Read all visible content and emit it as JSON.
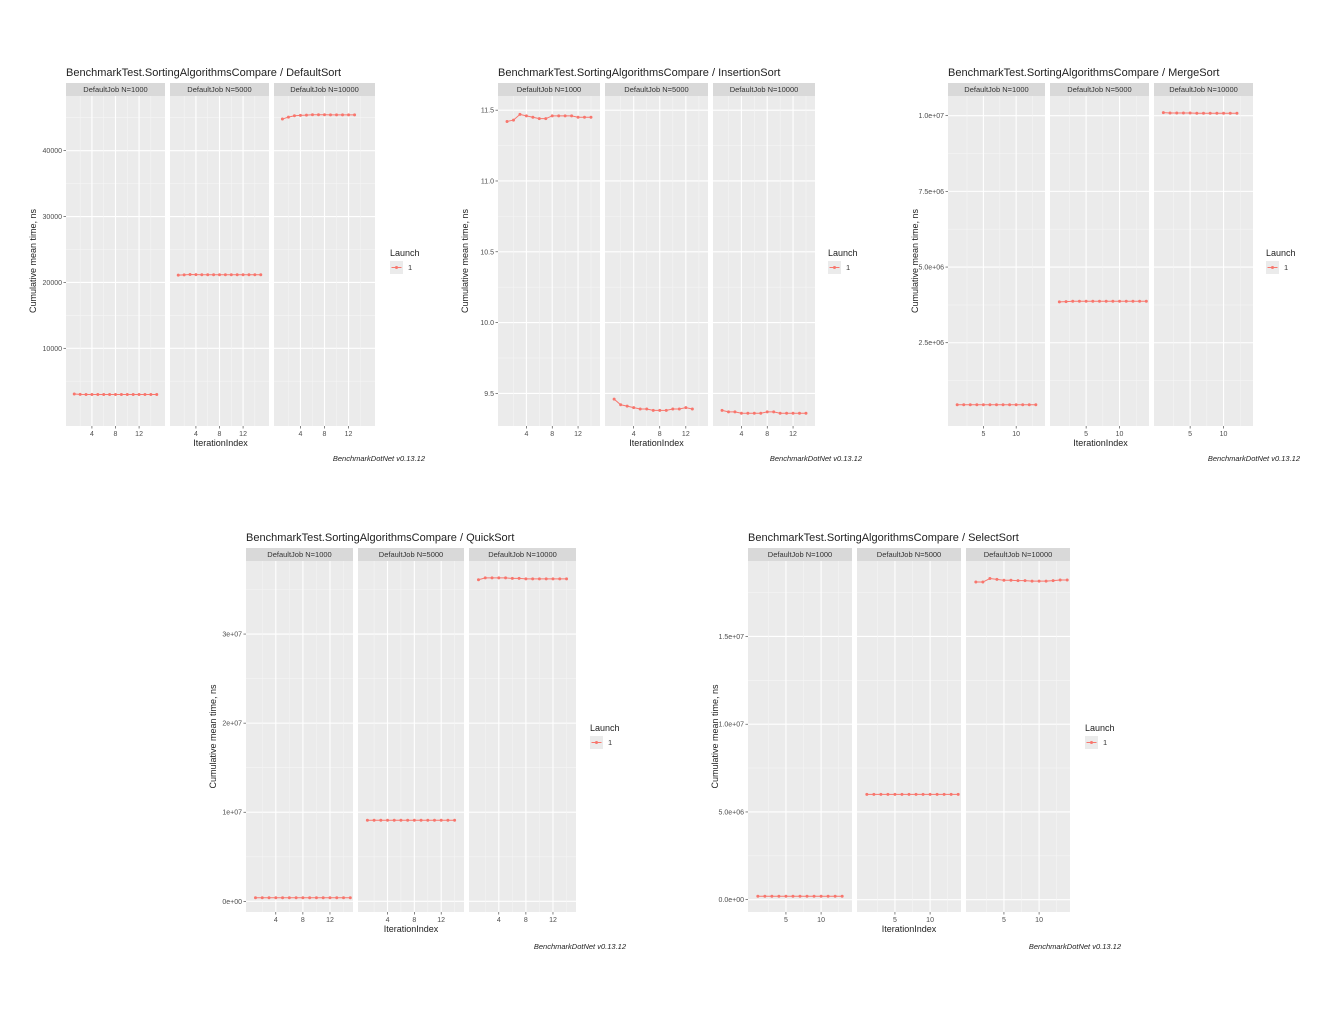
{
  "chart_data": [
    {
      "type": "line",
      "title": "BenchmarkTest.SortingAlgorithmsCompare / DefaultSort",
      "ylabel": "Cumulative mean time, ns",
      "xlabel": "IterationIndex",
      "legend": {
        "title": "Launch",
        "entries": [
          "1"
        ],
        "position": "right"
      },
      "caption": "BenchmarkDotNet v0.13.12",
      "ylim": [
        -1800,
        48300
      ],
      "yticks": [
        {
          "v": 10000,
          "label": "10000"
        },
        {
          "v": 20000,
          "label": "20000"
        },
        {
          "v": 30000,
          "label": "30000"
        },
        {
          "v": 40000,
          "label": "40000"
        }
      ],
      "xlim": [
        -0.4,
        16.4
      ],
      "xticks": [
        {
          "v": 4,
          "label": "4"
        },
        {
          "v": 8,
          "label": "8"
        },
        {
          "v": 12,
          "label": "12"
        }
      ],
      "series_color": "#F8766D",
      "panels": [
        {
          "label": "DefaultJob N=1000",
          "x": [
            1,
            2,
            3,
            4,
            5,
            6,
            7,
            8,
            9,
            10,
            11,
            12,
            13,
            14,
            15
          ],
          "y": [
            3050,
            3000,
            2990,
            2990,
            2990,
            2990,
            2990,
            2990,
            2990,
            2990,
            2990,
            2990,
            2990,
            2990,
            2990
          ]
        },
        {
          "label": "DefaultJob N=5000",
          "x": [
            1,
            2,
            3,
            4,
            5,
            6,
            7,
            8,
            9,
            10,
            11,
            12,
            13,
            14,
            15
          ],
          "y": [
            21100,
            21150,
            21200,
            21180,
            21170,
            21160,
            21160,
            21160,
            21160,
            21160,
            21160,
            21160,
            21160,
            21160,
            21160
          ]
        },
        {
          "label": "DefaultJob N=10000",
          "x": [
            1,
            2,
            3,
            4,
            5,
            6,
            7,
            8,
            9,
            10,
            11,
            12,
            13
          ],
          "y": [
            44800,
            45100,
            45300,
            45350,
            45400,
            45450,
            45450,
            45450,
            45440,
            45440,
            45440,
            45440,
            45440
          ]
        }
      ]
    },
    {
      "type": "line",
      "title": "BenchmarkTest.SortingAlgorithmsCompare / InsertionSort",
      "ylabel": "Cumulative mean time, ns",
      "xlabel": "IterationIndex",
      "legend": {
        "title": "Launch",
        "entries": [
          "1"
        ],
        "position": "right"
      },
      "caption": "BenchmarkDotNet v0.13.12",
      "ylim": [
        9.27,
        11.6
      ],
      "yticks": [
        {
          "v": 9.5,
          "label": "9.5"
        },
        {
          "v": 10.0,
          "label": "10.0"
        },
        {
          "v": 10.5,
          "label": "10.5"
        },
        {
          "v": 11.0,
          "label": "11.0"
        },
        {
          "v": 11.5,
          "label": "11.5"
        }
      ],
      "xlim": [
        -0.4,
        15.4
      ],
      "xticks": [
        {
          "v": 4,
          "label": "4"
        },
        {
          "v": 8,
          "label": "8"
        },
        {
          "v": 12,
          "label": "12"
        }
      ],
      "series_color": "#F8766D",
      "panels": [
        {
          "label": "DefaultJob N=1000",
          "x": [
            1,
            2,
            3,
            4,
            5,
            6,
            7,
            8,
            9,
            10,
            11,
            12,
            13,
            14
          ],
          "y": [
            11.42,
            11.43,
            11.47,
            11.46,
            11.45,
            11.44,
            11.44,
            11.46,
            11.46,
            11.46,
            11.46,
            11.45,
            11.45,
            11.45
          ]
        },
        {
          "label": "DefaultJob N=5000",
          "x": [
            1,
            2,
            3,
            4,
            5,
            6,
            7,
            8,
            9,
            10,
            11,
            12,
            13
          ],
          "y": [
            9.46,
            9.42,
            9.41,
            9.4,
            9.39,
            9.39,
            9.38,
            9.38,
            9.38,
            9.39,
            9.39,
            9.4,
            9.39
          ]
        },
        {
          "label": "DefaultJob N=10000",
          "x": [
            1,
            2,
            3,
            4,
            5,
            6,
            7,
            8,
            9,
            10,
            11,
            12,
            13,
            14
          ],
          "y": [
            9.38,
            9.37,
            9.37,
            9.36,
            9.36,
            9.36,
            9.36,
            9.37,
            9.37,
            9.36,
            9.36,
            9.36,
            9.36,
            9.36
          ]
        }
      ]
    },
    {
      "type": "line",
      "title": "BenchmarkTest.SortingAlgorithmsCompare / MergeSort",
      "ylabel": "Cumulative mean time, ns",
      "xlabel": "IterationIndex",
      "legend": {
        "title": "Launch",
        "entries": [
          "1"
        ],
        "position": "right"
      },
      "caption": "BenchmarkDotNet v0.13.12",
      "ylim": [
        -250000,
        10650000
      ],
      "yticks": [
        {
          "v": 2500000,
          "label": "2.5e+06"
        },
        {
          "v": 5000000,
          "label": "5.0e+06"
        },
        {
          "v": 7500000,
          "label": "7.5e+06"
        },
        {
          "v": 10000000,
          "label": "1.0e+07"
        }
      ],
      "xlim": [
        -0.4,
        14.4
      ],
      "xticks": [
        {
          "v": 5,
          "label": "5"
        },
        {
          "v": 10,
          "label": "10"
        }
      ],
      "series_color": "#F8766D",
      "panels": [
        {
          "label": "DefaultJob N=1000",
          "x": [
            1,
            2,
            3,
            4,
            5,
            6,
            7,
            8,
            9,
            10,
            11,
            12,
            13
          ],
          "y": [
            450000,
            450000,
            450000,
            450000,
            450000,
            450000,
            450000,
            450000,
            450000,
            450000,
            450000,
            450000,
            450000
          ]
        },
        {
          "label": "DefaultJob N=5000",
          "x": [
            1,
            2,
            3,
            4,
            5,
            6,
            7,
            8,
            9,
            10,
            11,
            12,
            13,
            14
          ],
          "y": [
            3850000,
            3860000,
            3870000,
            3870000,
            3870000,
            3870000,
            3870000,
            3870000,
            3870000,
            3870000,
            3870000,
            3870000,
            3870000,
            3870000
          ]
        },
        {
          "label": "DefaultJob N=10000",
          "x": [
            1,
            2,
            3,
            4,
            5,
            6,
            7,
            8,
            9,
            10,
            11,
            12
          ],
          "y": [
            10100000,
            10090000,
            10090000,
            10090000,
            10090000,
            10080000,
            10080000,
            10080000,
            10080000,
            10080000,
            10080000,
            10080000
          ]
        }
      ]
    },
    {
      "type": "line",
      "title": "BenchmarkTest.SortingAlgorithmsCompare / QuickSort",
      "ylabel": "Cumulative mean time, ns",
      "xlabel": "IterationIndex",
      "legend": {
        "title": "Launch",
        "entries": [
          "1"
        ],
        "position": "right"
      },
      "caption": "BenchmarkDotNet v0.13.12",
      "ylim": [
        -1200000,
        38200000
      ],
      "yticks": [
        {
          "v": 0,
          "label": "0e+00"
        },
        {
          "v": 10000000,
          "label": "1e+07"
        },
        {
          "v": 20000000,
          "label": "2e+07"
        },
        {
          "v": 30000000,
          "label": "3e+07"
        }
      ],
      "xlim": [
        -0.4,
        15.4
      ],
      "xticks": [
        {
          "v": 4,
          "label": "4"
        },
        {
          "v": 8,
          "label": "8"
        },
        {
          "v": 12,
          "label": "12"
        }
      ],
      "series_color": "#F8766D",
      "panels": [
        {
          "label": "DefaultJob N=1000",
          "x": [
            1,
            2,
            3,
            4,
            5,
            6,
            7,
            8,
            9,
            10,
            11,
            12,
            13,
            14,
            15
          ],
          "y": [
            400000,
            400000,
            400000,
            400000,
            400000,
            400000,
            400000,
            400000,
            400000,
            400000,
            400000,
            400000,
            400000,
            400000,
            400000
          ]
        },
        {
          "label": "DefaultJob N=5000",
          "x": [
            1,
            2,
            3,
            4,
            5,
            6,
            7,
            8,
            9,
            10,
            11,
            12,
            13,
            14
          ],
          "y": [
            9100000,
            9100000,
            9100000,
            9100000,
            9100000,
            9100000,
            9100000,
            9100000,
            9100000,
            9100000,
            9100000,
            9100000,
            9100000,
            9100000
          ]
        },
        {
          "label": "DefaultJob N=10000",
          "x": [
            1,
            2,
            3,
            4,
            5,
            6,
            7,
            8,
            9,
            10,
            11,
            12,
            13,
            14
          ],
          "y": [
            36100000,
            36300000,
            36300000,
            36300000,
            36300000,
            36250000,
            36250000,
            36200000,
            36200000,
            36200000,
            36200000,
            36200000,
            36200000,
            36200000
          ]
        }
      ]
    },
    {
      "type": "line",
      "title": "BenchmarkTest.SortingAlgorithmsCompare / SelectSort",
      "ylabel": "Cumulative mean time, ns",
      "xlabel": "IterationIndex",
      "legend": {
        "title": "Launch",
        "entries": [
          "1"
        ],
        "position": "right"
      },
      "caption": "BenchmarkDotNet v0.13.12",
      "ylim": [
        -700000,
        19300000
      ],
      "yticks": [
        {
          "v": 0,
          "label": "0.0e+00"
        },
        {
          "v": 5000000,
          "label": "5.0e+06"
        },
        {
          "v": 10000000,
          "label": "1.0e+07"
        },
        {
          "v": 15000000,
          "label": "1.5e+07"
        }
      ],
      "xlim": [
        -0.4,
        14.4
      ],
      "xticks": [
        {
          "v": 5,
          "label": "5"
        },
        {
          "v": 10,
          "label": "10"
        }
      ],
      "series_color": "#F8766D",
      "panels": [
        {
          "label": "DefaultJob N=1000",
          "x": [
            1,
            2,
            3,
            4,
            5,
            6,
            7,
            8,
            9,
            10,
            11,
            12,
            13
          ],
          "y": [
            200000,
            200000,
            200000,
            200000,
            200000,
            200000,
            200000,
            200000,
            200000,
            200000,
            200000,
            200000,
            200000
          ]
        },
        {
          "label": "DefaultJob N=5000",
          "x": [
            1,
            2,
            3,
            4,
            5,
            6,
            7,
            8,
            9,
            10,
            11,
            12,
            13,
            14
          ],
          "y": [
            6000000,
            6000000,
            6000000,
            6000000,
            6000000,
            6000000,
            6000000,
            6000000,
            6000000,
            6000000,
            6000000,
            6000000,
            6000000,
            6000000
          ]
        },
        {
          "label": "DefaultJob N=10000",
          "x": [
            1,
            2,
            3,
            4,
            5,
            6,
            7,
            8,
            9,
            10,
            11,
            12,
            13,
            14
          ],
          "y": [
            18100000,
            18100000,
            18300000,
            18250000,
            18200000,
            18200000,
            18180000,
            18180000,
            18150000,
            18150000,
            18150000,
            18180000,
            18220000,
            18220000
          ]
        }
      ]
    }
  ]
}
